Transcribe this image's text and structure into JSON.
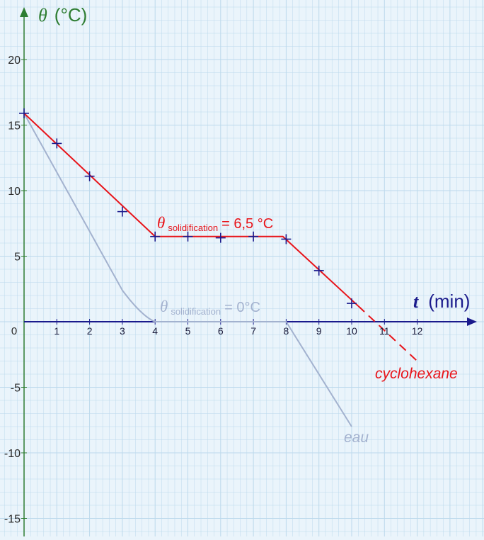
{
  "chart_data": {
    "type": "line",
    "title": "",
    "ylabel": {
      "symbol": "θ",
      "unit": "(°C)"
    },
    "xlabel": {
      "symbol": "t",
      "unit": "(min)"
    },
    "xlim": [
      0,
      14
    ],
    "ylim": [
      -16,
      23.5
    ],
    "grid": true,
    "x_ticks": [
      "1",
      "2",
      "3",
      "4",
      "5",
      "6",
      "7",
      "8",
      "9",
      "10",
      "11",
      "12"
    ],
    "y_ticks": [
      "20",
      "15",
      "10",
      "5",
      "-5",
      "-10",
      "-15"
    ],
    "origin_label": "0",
    "series": [
      {
        "name": "cyclohexane",
        "color": "#e8141a",
        "measured_points": [
          {
            "x": 0,
            "y": 15.9
          },
          {
            "x": 1,
            "y": 13.6
          },
          {
            "x": 2,
            "y": 11.1
          },
          {
            "x": 3,
            "y": 8.4
          },
          {
            "x": 4,
            "y": 6.5
          },
          {
            "x": 5,
            "y": 6.5
          },
          {
            "x": 6,
            "y": 6.4
          },
          {
            "x": 7,
            "y": 6.5
          },
          {
            "x": 8,
            "y": 6.3
          },
          {
            "x": 9,
            "y": 3.9
          },
          {
            "x": 10,
            "y": 1.4
          }
        ],
        "fit_line": [
          {
            "x": 0,
            "y": 15.9
          },
          {
            "x": 4,
            "y": 6.5
          },
          {
            "x": 7.9,
            "y": 6.5
          },
          {
            "x": 10.2,
            "y": 1.2
          }
        ],
        "extrapolation": [
          {
            "x": 10.2,
            "y": 1.2
          },
          {
            "x": 12,
            "y": -3
          }
        ],
        "marker_color": "#1a1a8c"
      },
      {
        "name": "eau",
        "color": "#a3b2cf",
        "curve": [
          {
            "x": 0,
            "y": 15.9
          },
          {
            "x": 3,
            "y": 2.4
          },
          {
            "x": 4,
            "y": 0
          },
          {
            "x": 8,
            "y": 0
          },
          {
            "x": 10,
            "y": -8
          }
        ]
      }
    ],
    "annotations": [
      {
        "symbol": "θ",
        "subscript": "solidification",
        "rest": "= 6,5 °C",
        "color": "#e8141a"
      },
      {
        "symbol": "θ",
        "subscript": "solidification",
        "rest": "= 0°C",
        "color": "#a3b2cf"
      }
    ],
    "colors": {
      "axis_y": "#2e7d32",
      "axis_x": "#1a1a8c",
      "background": "#eaf4fb",
      "grid": "#bcd9ec"
    }
  }
}
